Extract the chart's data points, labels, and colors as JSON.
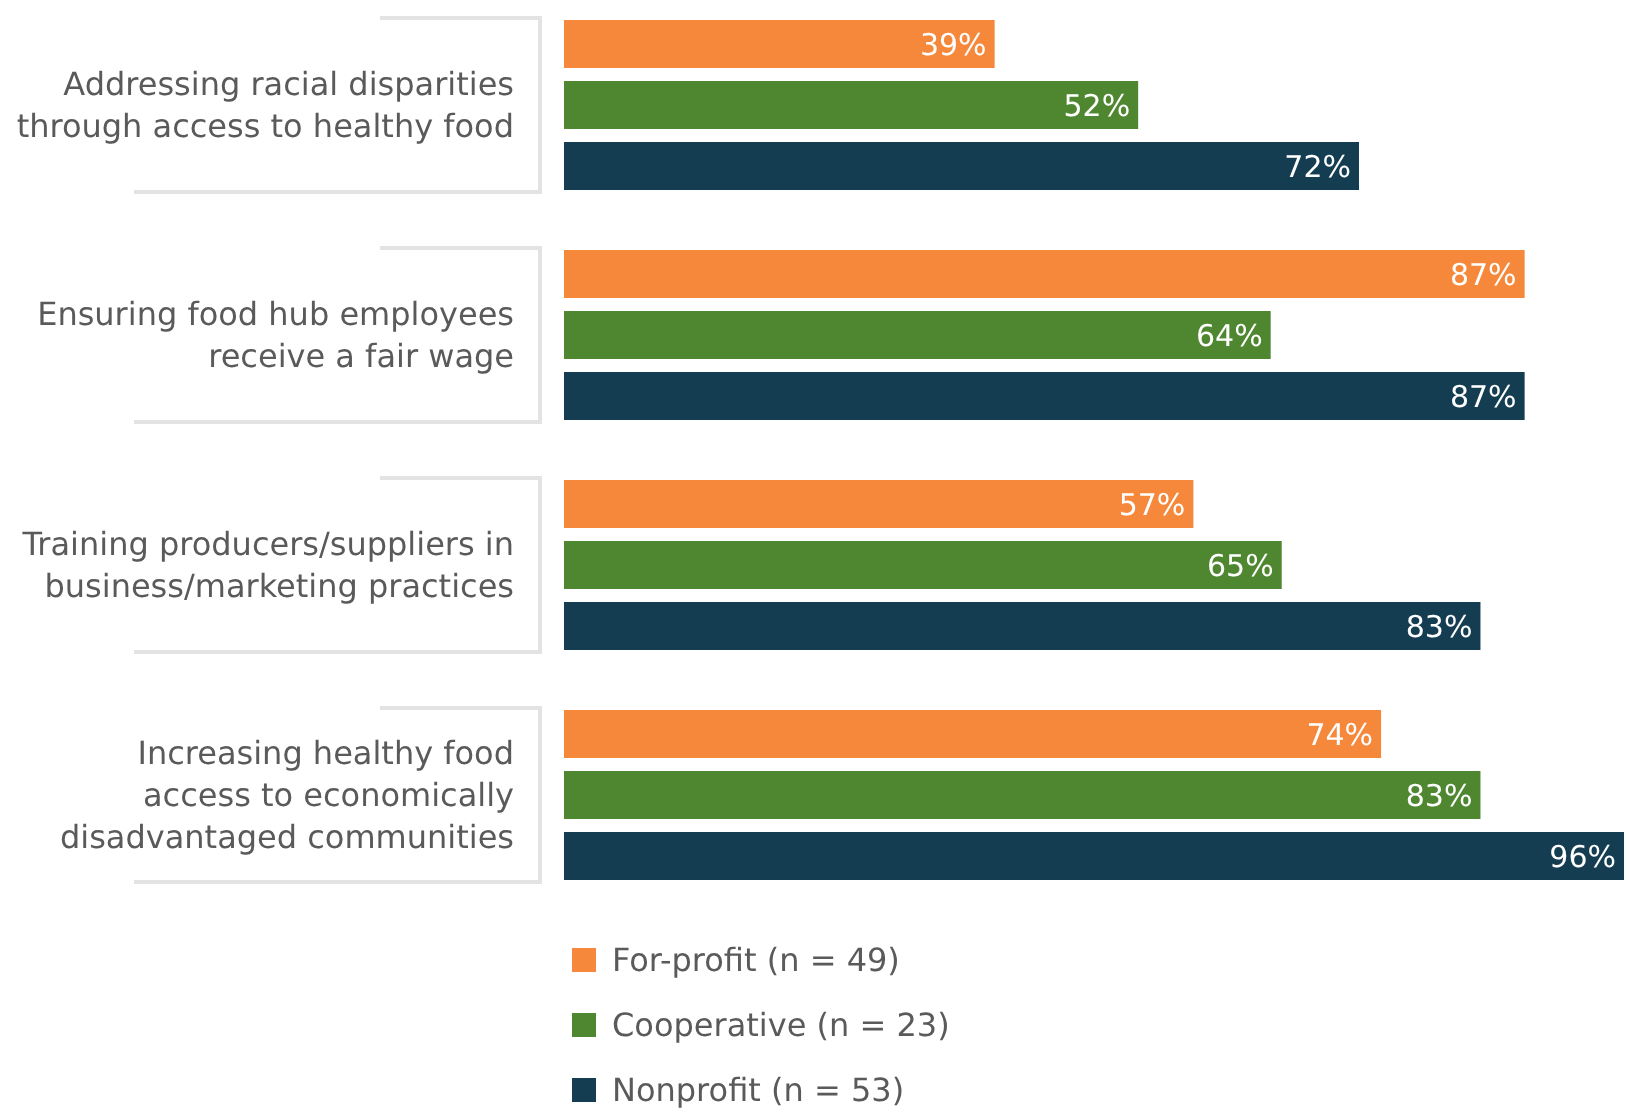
{
  "chart_data": {
    "type": "bar",
    "orientation": "horizontal",
    "legend": "bottom",
    "categories": [
      "Addressing racial disparities\nthrough access to healthy food",
      "Ensuring food hub employees\nreceive a fair wage",
      "Training producers/suppliers in\nbusiness/marketing practices",
      "Increasing healthy food\naccess to economically\ndisadvantaged communities"
    ],
    "series": [
      {
        "name": "For-profit (n = 49)",
        "color": "#f5883a",
        "values": [
          39,
          87,
          57,
          74
        ],
        "value_labels": [
          "39%",
          "87%",
          "57%",
          "74%"
        ]
      },
      {
        "name": "Cooperative (n = 23)",
        "color": "#4f8731",
        "values": [
          52,
          64,
          65,
          83
        ],
        "value_labels": [
          "52%",
          "64%",
          "65%",
          "83%"
        ]
      },
      {
        "name": "Nonprofit (n = 53)",
        "color": "#143d52",
        "values": [
          72,
          87,
          83,
          96
        ],
        "value_labels": [
          "72%",
          "87%",
          "83%",
          "96%"
        ]
      }
    ]
  }
}
